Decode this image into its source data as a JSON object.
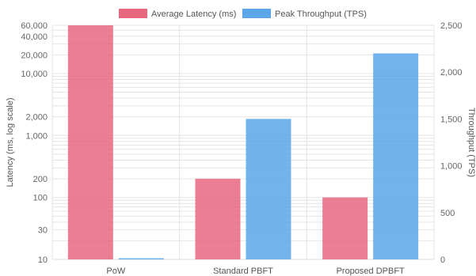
{
  "chart_data": {
    "type": "bar",
    "categories": [
      "PoW",
      "Standard PBFT",
      "Proposed DPBFT"
    ],
    "series": [
      {
        "name": "Average Latency (ms)",
        "axis": "left",
        "color": "#e8677f",
        "values": [
          60000,
          200,
          100
        ]
      },
      {
        "name": "Peak Throughput (TPS)",
        "axis": "right",
        "color": "#5aa6e8",
        "values": [
          7,
          1500,
          2200
        ]
      }
    ],
    "y_left": {
      "label": "Latency (ms, log scale)",
      "scale": "log",
      "range": [
        10,
        60000
      ],
      "ticks": [
        10,
        30,
        100,
        200,
        1000,
        2000,
        10000,
        20000,
        40000,
        60000
      ],
      "tick_labels": [
        "10",
        "30",
        "100",
        "200",
        "1,000",
        "2,000",
        "10,000",
        "20,000",
        "40,000",
        "60,000"
      ]
    },
    "y_right": {
      "label": "Throughput (TPS)",
      "scale": "linear",
      "range": [
        0,
        2500
      ],
      "ticks": [
        0,
        500,
        1000,
        1500,
        2000,
        2500
      ],
      "tick_labels": [
        "0",
        "500",
        "1,000",
        "1,500",
        "2,000",
        "2,500"
      ]
    },
    "grid": true,
    "legend_position": "top"
  }
}
